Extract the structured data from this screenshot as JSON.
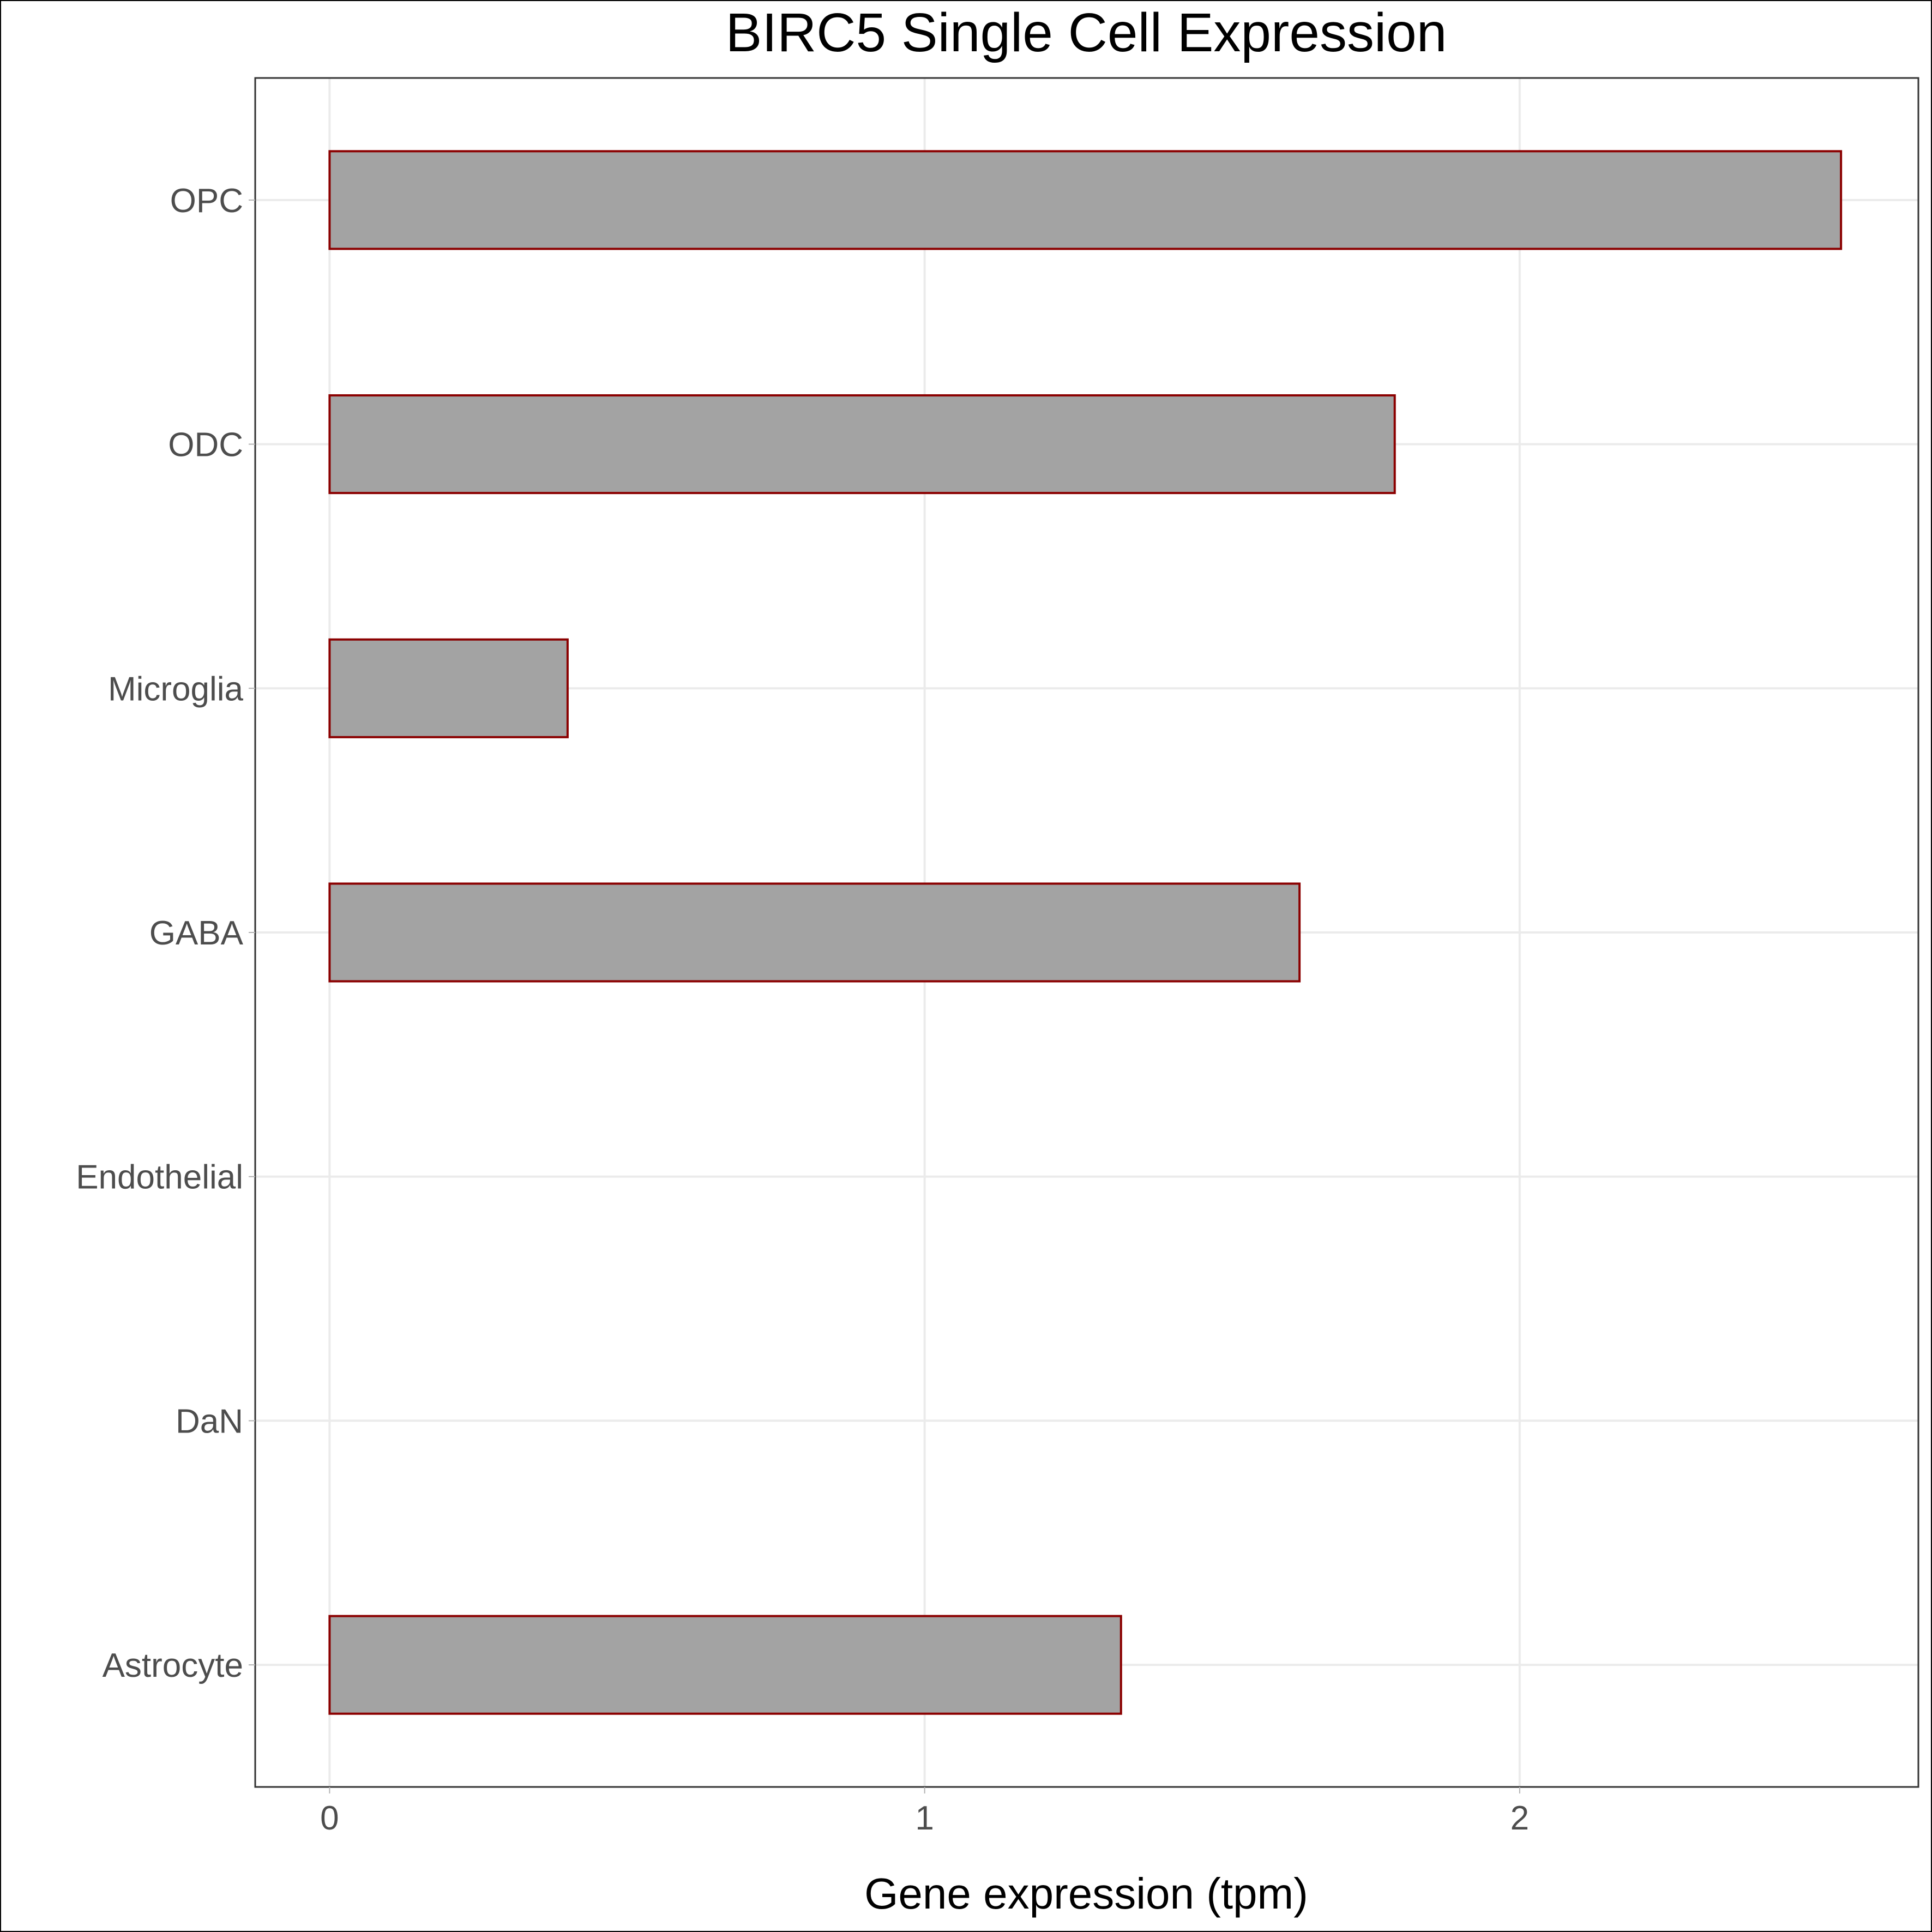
{
  "chart_data": {
    "type": "bar",
    "orientation": "horizontal",
    "title": "BIRC5 Single Cell Expression",
    "xlabel": "Gene expression (tpm)",
    "ylabel": "",
    "categories": [
      "OPC",
      "ODC",
      "Microglia",
      "GABA",
      "Endothelial",
      "DaN",
      "Astrocyte"
    ],
    "values": [
      2.54,
      1.79,
      0.4,
      1.63,
      0.0,
      0.0,
      1.33
    ],
    "xlim": [
      -0.125,
      2.67
    ],
    "xticks": [
      0,
      1,
      2
    ],
    "xtick_labels": [
      "0",
      "1",
      "2"
    ],
    "grid": true,
    "bar_fill": "#a3a3a3",
    "bar_outline": "#8b0000"
  }
}
